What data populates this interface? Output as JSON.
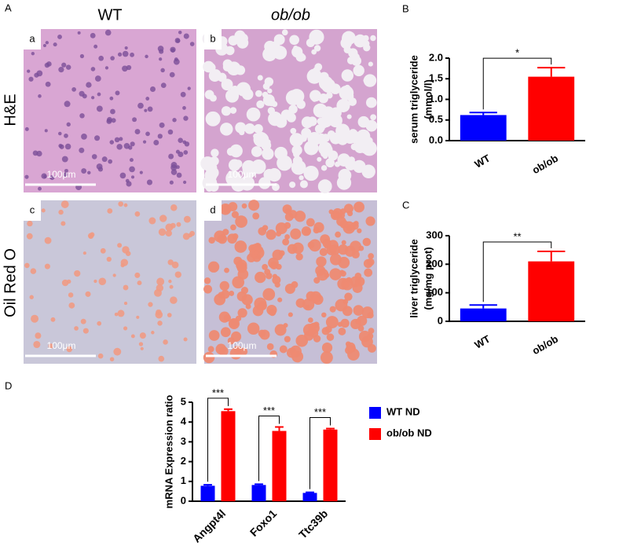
{
  "labels": {
    "panel_a": "A",
    "panel_b": "B",
    "panel_c": "C",
    "panel_d": "D",
    "col_wt": "WT",
    "col_ob": "ob/ob",
    "row_he": "H&E",
    "row_oro": "Oil Red O",
    "img_a": "a",
    "img_b": "b",
    "img_c": "c",
    "img_d": "d",
    "scale_a": "100μm",
    "scale_b": "100μm",
    "scale_c": "100μm",
    "scale_d": "100μm"
  },
  "chart_data": [
    {
      "type": "bar",
      "categories": [
        "WT",
        "ob/ob"
      ],
      "values": [
        0.62,
        1.55
      ],
      "errors": [
        0.06,
        0.22
      ],
      "colors": [
        "#0000ff",
        "#ff0000"
      ],
      "ylabel": [
        "serum triglyceride",
        "(mmol/l)"
      ],
      "ylim": [
        0,
        2.0
      ],
      "yticks": [
        {
          "value": 0,
          "label": "0.0"
        },
        0.5,
        {
          "value": 1,
          "label": "1.0"
        },
        1.5,
        {
          "value": 2,
          "label": "2.0"
        }
      ],
      "annotations": [
        "*"
      ]
    },
    {
      "type": "bar",
      "categories": [
        "WT",
        "ob/ob"
      ],
      "values": [
        45,
        210
      ],
      "errors": [
        12,
        35
      ],
      "colors": [
        "#0000ff",
        "#ff0000"
      ],
      "ylabel": [
        "liver triglyceride",
        "(mg/mg prot)"
      ],
      "ylim": [
        0,
        300
      ],
      "yticks": [
        0,
        100,
        200,
        300
      ],
      "annotations": [
        "**"
      ]
    },
    {
      "type": "grouped_bar",
      "categories": [
        "Angpt4l",
        "Foxo1",
        "Ttc39b"
      ],
      "series": [
        {
          "name": "WT ND",
          "color": "#0000ff",
          "values": [
            0.78,
            0.82,
            0.42
          ],
          "errors": [
            0.05,
            0.04,
            0.03
          ]
        },
        {
          "name": "ob/ob ND",
          "color": "#ff0000",
          "values": [
            4.55,
            3.55,
            3.62
          ],
          "errors": [
            0.1,
            0.2,
            0.05
          ]
        }
      ],
      "ylabel": [
        "mRNA Expression ratio"
      ],
      "ylim": [
        0,
        5
      ],
      "yticks": [
        0,
        1,
        2,
        3,
        4,
        5
      ],
      "annotations": [
        "***",
        "***",
        "***"
      ]
    }
  ]
}
